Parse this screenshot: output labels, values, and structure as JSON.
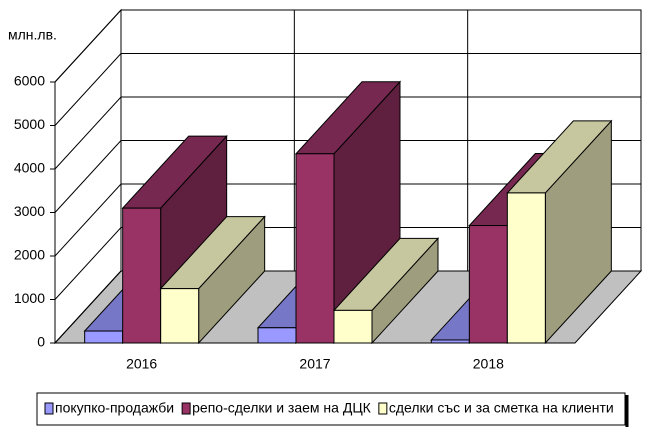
{
  "chart_data": {
    "type": "bar3d",
    "unit_label": "млн.лв.",
    "categories": [
      "2016",
      "2017",
      "2018"
    ],
    "series": [
      {
        "name": "покупко-продажби",
        "color": "#9999ff",
        "values": [
          275,
          350,
          70
        ]
      },
      {
        "name": "репо-сделки и заем на ДЦК",
        "color": "#993366",
        "values": [
          3100,
          4350,
          2700
        ]
      },
      {
        "name": "сделки със и за сметка на клиенти",
        "color": "#ffffcc",
        "values": [
          1250,
          750,
          3450
        ]
      }
    ],
    "ylim": [
      0,
      6000
    ],
    "yticks": [
      0,
      1000,
      2000,
      3000,
      4000,
      5000,
      6000
    ],
    "grid": true
  }
}
